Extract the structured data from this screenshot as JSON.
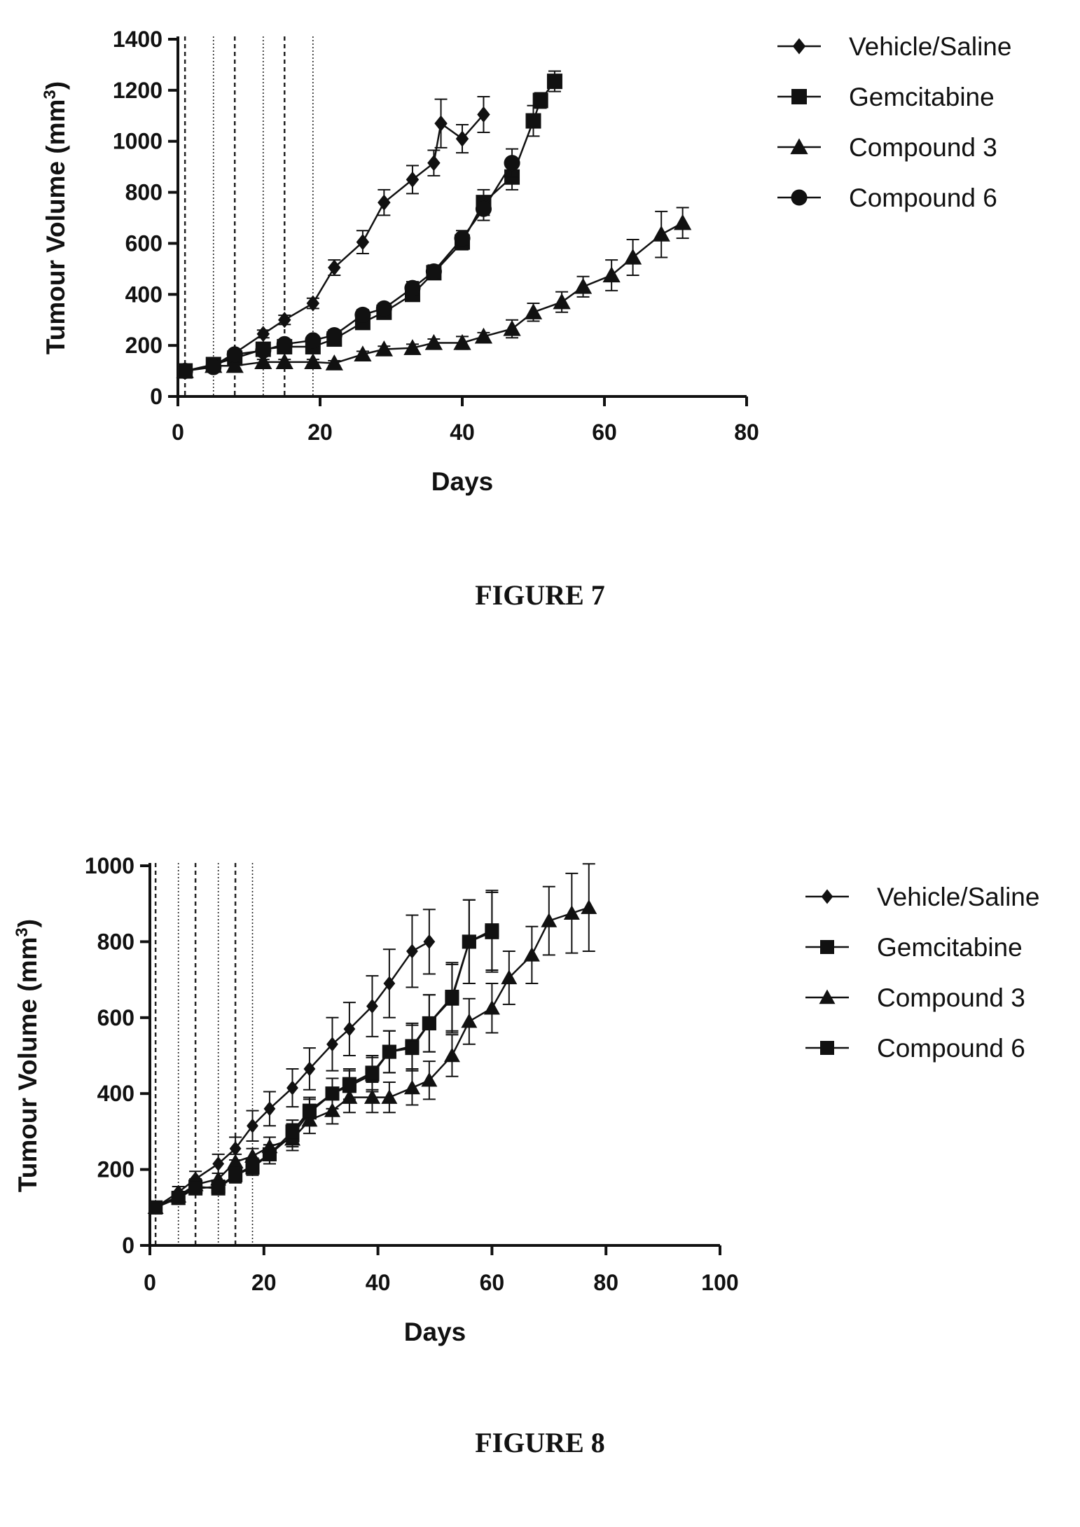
{
  "figures": [
    {
      "caption": "FIGURE 7"
    },
    {
      "caption": "FIGURE 8"
    }
  ],
  "chart_data": [
    {
      "type": "line",
      "title": "",
      "xlabel": "Days",
      "ylabel_main": "Tumour Volume (mm",
      "ylabel_sup": "3",
      "ylabel_close": ")",
      "xlim": [
        0,
        80
      ],
      "ylim": [
        0,
        1400
      ],
      "xticks": [
        0,
        20,
        40,
        60,
        80
      ],
      "yticks": [
        0,
        200,
        400,
        600,
        800,
        1000,
        1200,
        1400
      ],
      "grid": false,
      "legend_position": "right",
      "dosing_lines": [
        1,
        5,
        8,
        12,
        15,
        19
      ],
      "series": [
        {
          "name": "Vehicle/Saline",
          "marker": "diamond",
          "x": [
            1,
            5,
            8,
            12,
            15,
            19,
            22,
            26,
            29,
            33,
            36,
            37,
            40,
            43
          ],
          "y": [
            100,
            120,
            170,
            245,
            300,
            365,
            505,
            605,
            760,
            850,
            915,
            1070,
            1010,
            1105
          ],
          "err": [
            8,
            10,
            12,
            15,
            18,
            20,
            30,
            45,
            50,
            55,
            50,
            95,
            55,
            70
          ]
        },
        {
          "name": "Gemcitabine",
          "marker": "square",
          "x": [
            1,
            5,
            8,
            12,
            15,
            19,
            22,
            26,
            29,
            33,
            36,
            40,
            43,
            47,
            50,
            51,
            53
          ],
          "y": [
            100,
            125,
            150,
            185,
            195,
            195,
            225,
            290,
            330,
            400,
            485,
            605,
            760,
            860,
            1080,
            1160,
            1235
          ],
          "err": [
            8,
            10,
            12,
            12,
            12,
            15,
            15,
            20,
            20,
            25,
            25,
            30,
            50,
            50,
            60,
            30,
            40
          ]
        },
        {
          "name": "Compound 3",
          "marker": "triangle",
          "x": [
            1,
            5,
            8,
            12,
            15,
            19,
            22,
            26,
            29,
            33,
            36,
            40,
            43,
            47,
            50,
            54,
            57,
            61,
            64,
            68,
            71
          ],
          "y": [
            100,
            120,
            120,
            135,
            135,
            135,
            130,
            165,
            185,
            190,
            210,
            210,
            235,
            265,
            330,
            370,
            430,
            475,
            545,
            635,
            680
          ],
          "err": [
            8,
            10,
            10,
            10,
            10,
            10,
            10,
            12,
            12,
            15,
            15,
            25,
            15,
            35,
            35,
            40,
            40,
            60,
            70,
            90,
            60
          ]
        },
        {
          "name": "Compound 6",
          "marker": "circle",
          "x": [
            1,
            5,
            8,
            12,
            15,
            19,
            22,
            26,
            29,
            33,
            36,
            40,
            43,
            47
          ],
          "y": [
            100,
            115,
            165,
            180,
            205,
            220,
            240,
            320,
            345,
            425,
            490,
            620,
            735,
            915
          ],
          "err": [
            8,
            10,
            12,
            12,
            15,
            15,
            20,
            20,
            20,
            25,
            25,
            30,
            45,
            55
          ]
        }
      ]
    },
    {
      "type": "line",
      "title": "",
      "xlabel": "Days",
      "ylabel_main": "Tumour Volume (mm",
      "ylabel_sup": "3",
      "ylabel_close": ")",
      "xlim": [
        0,
        100
      ],
      "ylim": [
        0,
        1000
      ],
      "xticks": [
        0,
        20,
        40,
        60,
        80,
        100
      ],
      "yticks": [
        0,
        200,
        400,
        600,
        800,
        1000
      ],
      "grid": false,
      "legend_position": "right",
      "dosing_lines": [
        1,
        5,
        8,
        12,
        15,
        18
      ],
      "series": [
        {
          "name": "Vehicle/Saline",
          "marker": "diamond",
          "x": [
            1,
            5,
            8,
            12,
            15,
            18,
            21,
            25,
            28,
            32,
            35,
            39,
            42,
            46,
            49
          ],
          "y": [
            100,
            140,
            175,
            215,
            255,
            315,
            360,
            415,
            465,
            530,
            570,
            630,
            690,
            775,
            800
          ],
          "err": [
            10,
            15,
            20,
            25,
            30,
            40,
            45,
            50,
            55,
            70,
            70,
            80,
            90,
            95,
            85
          ]
        },
        {
          "name": "Gemcitabine",
          "marker": "square",
          "x": [
            1,
            5,
            8,
            12,
            15,
            18,
            21,
            25,
            28,
            32,
            35,
            39,
            42,
            46,
            49,
            53,
            56,
            60
          ],
          "y": [
            100,
            125,
            155,
            150,
            185,
            205,
            240,
            290,
            350,
            400,
            420,
            450,
            510,
            525,
            585,
            650,
            800,
            825
          ],
          "err": [
            8,
            12,
            15,
            15,
            20,
            20,
            25,
            30,
            35,
            40,
            40,
            45,
            55,
            60,
            75,
            90,
            110,
            105
          ]
        },
        {
          "name": "Compound 3",
          "marker": "triangle",
          "x": [
            1,
            5,
            8,
            12,
            15,
            18,
            21,
            25,
            28,
            32,
            35,
            39,
            42,
            46,
            49,
            53,
            56,
            60,
            63,
            67,
            70,
            74,
            77
          ],
          "y": [
            100,
            130,
            160,
            175,
            220,
            235,
            260,
            280,
            330,
            355,
            390,
            390,
            390,
            415,
            435,
            500,
            590,
            625,
            705,
            765,
            855,
            875,
            890
          ],
          "err": [
            8,
            12,
            15,
            15,
            20,
            20,
            25,
            30,
            35,
            35,
            40,
            40,
            40,
            45,
            50,
            55,
            60,
            65,
            70,
            75,
            90,
            105,
            115
          ]
        },
        {
          "name": "Compound 6",
          "marker": "square",
          "x": [
            1,
            5,
            8,
            12,
            15,
            18,
            21,
            25,
            28,
            32,
            35,
            39,
            42,
            46,
            49,
            53,
            56,
            60
          ],
          "y": [
            100,
            125,
            150,
            155,
            185,
            210,
            240,
            300,
            355,
            400,
            425,
            455,
            510,
            520,
            585,
            655,
            800,
            830
          ],
          "err": [
            8,
            12,
            15,
            15,
            20,
            20,
            25,
            30,
            35,
            40,
            40,
            45,
            55,
            60,
            75,
            90,
            110,
            105
          ]
        }
      ]
    }
  ]
}
